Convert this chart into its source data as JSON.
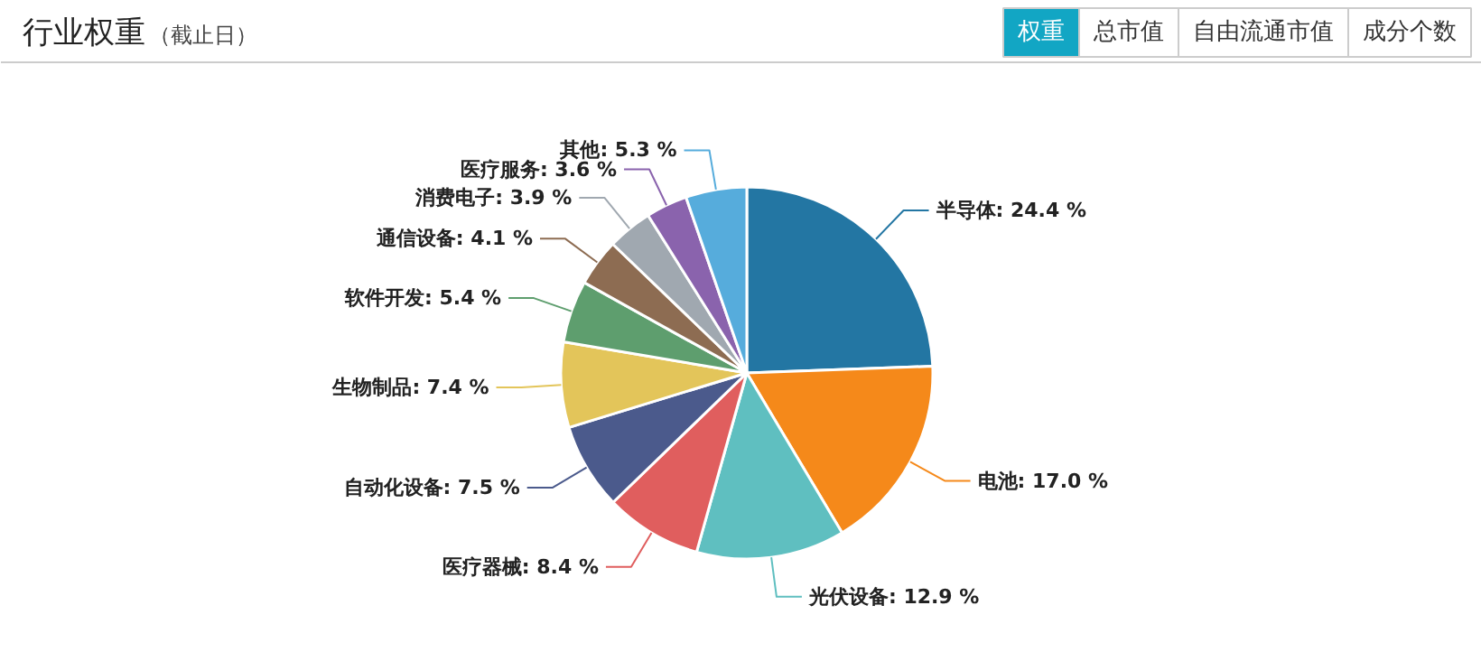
{
  "chart_data": {
    "type": "pie",
    "title": "行业权重",
    "subtitle": "（截止日）",
    "annotations": [
      "权重",
      "总市值",
      "自由流通市值",
      "成分个数"
    ],
    "categories": [
      "半导体",
      "电池",
      "光伏设备",
      "医疗器械",
      "自动化设备",
      "生物制品",
      "软件开发",
      "通信设备",
      "消费电子",
      "医疗服务",
      "其他"
    ],
    "values": [
      24.4,
      17.0,
      12.9,
      8.4,
      7.5,
      7.4,
      5.4,
      4.1,
      3.9,
      3.6,
      5.3
    ],
    "value_labels": [
      "24.4 %",
      "17.0 %",
      "12.9 %",
      "8.4 %",
      "7.5 %",
      "7.4 %",
      "5.4 %",
      "4.1 %",
      "3.9 %",
      "3.6 %",
      "5.3 %"
    ],
    "colors": [
      "#2376a3",
      "#f5891a",
      "#5fbfc0",
      "#e05e5e",
      "#4b5a8c",
      "#e3c55a",
      "#5e9e6e",
      "#8d6c52",
      "#a0a8b0",
      "#8a63ad",
      "#56acdc"
    ]
  }
}
